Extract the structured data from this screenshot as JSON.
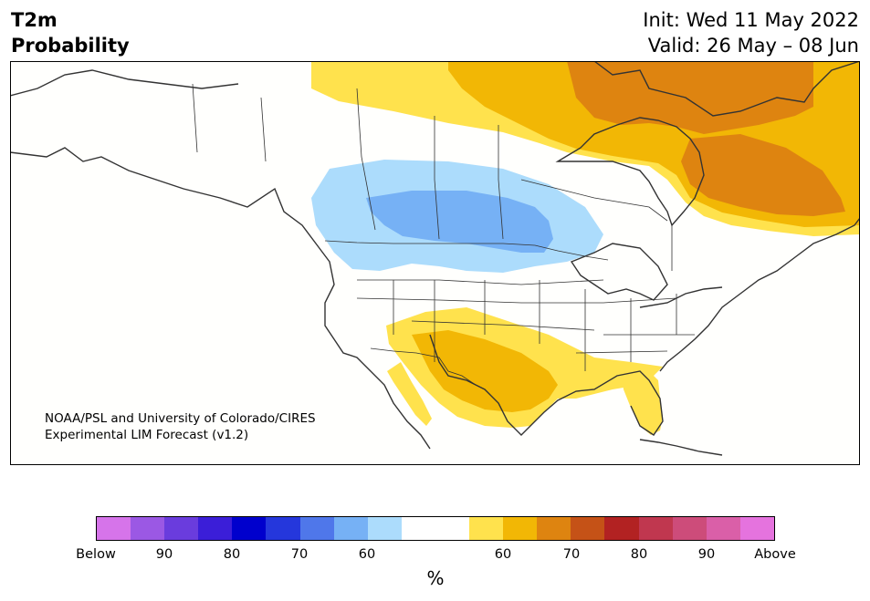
{
  "header": {
    "title_line1": "T2m",
    "title_line2": "Probability",
    "init_text": "Init: Wed 11 May 2022",
    "valid_text": "Valid: 26 May – 08 Jun"
  },
  "map": {
    "credit_line1": "NOAA/PSL and University of Colorado/CIRES",
    "credit_line2": "Experimental LIM Forecast (v1.2)",
    "regions": [
      {
        "name": "northern-canada-above-60",
        "category": "60"
      },
      {
        "name": "northern-canada-above-65",
        "category": "65"
      },
      {
        "name": "hudson-bay-area-above-70",
        "category": "70"
      },
      {
        "name": "quebec-labrador-above-70",
        "category": "70"
      },
      {
        "name": "northern-plains-below-60",
        "category": "-60"
      },
      {
        "name": "northern-plains-below-70",
        "category": "-70"
      },
      {
        "name": "southern-us-above-60",
        "category": "60"
      },
      {
        "name": "texas-above-65",
        "category": "65"
      },
      {
        "name": "florida-above-60",
        "category": "60"
      }
    ]
  },
  "colorbar": {
    "unit_label": "%",
    "colors": [
      "#d674ea",
      "#9b58e4",
      "#6a3cdd",
      "#3b1ed8",
      "#0000cd",
      "#2537dc",
      "#4f77ea",
      "#76b1f5",
      "#acdcfc",
      "#ffffff",
      "#ffffff",
      "#ffe24d",
      "#f2b705",
      "#de8410",
      "#c55217",
      "#b22222",
      "#c0374f",
      "#cd4c7a",
      "#da5fa8",
      "#e573de"
    ],
    "tick_labels": [
      "Below",
      "90",
      "80",
      "70",
      "60",
      "60",
      "70",
      "80",
      "90",
      "Above"
    ]
  }
}
